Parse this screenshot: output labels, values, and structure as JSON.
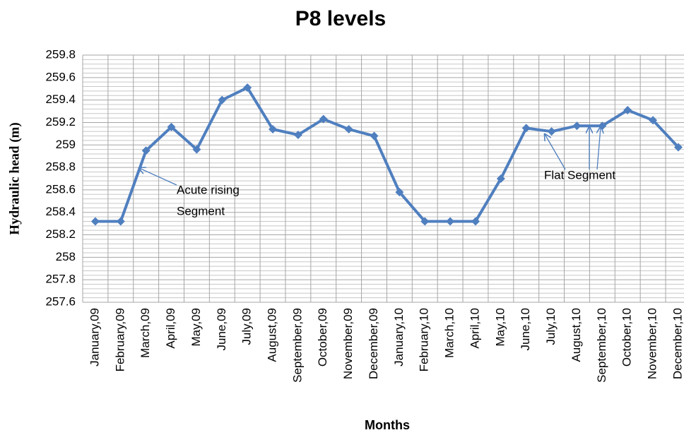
{
  "chart_data": {
    "type": "line",
    "title": "P8 levels",
    "x_label": "Months",
    "y_label": "Hydraulic  head (m)",
    "categories": [
      "January,09",
      "February,09",
      "March,09",
      "April,09",
      "May,09",
      "June,09",
      "July,09",
      "August,09",
      "September,09",
      "October,09",
      "November,09",
      "December,09",
      "January,10",
      "February,10",
      "March,10",
      "April,10",
      "May,10",
      "June,10",
      "July,10",
      "August,10",
      "September,10",
      "October,10",
      "November,10",
      "December,10"
    ],
    "series": [
      {
        "color": "#4f7fbf",
        "values": [
          258.32,
          258.32,
          258.95,
          259.16,
          258.96,
          259.4,
          259.51,
          259.14,
          259.09,
          259.23,
          259.14,
          259.08,
          258.58,
          258.32,
          258.32,
          258.32,
          258.7,
          259.15,
          259.12,
          259.17,
          259.17,
          259.31,
          259.22,
          258.98
        ]
      }
    ],
    "ylim": [
      257.6,
      259.8
    ],
    "yticks": [
      257.6,
      257.8,
      258,
      258.2,
      258.4,
      258.6,
      258.8,
      259,
      259.2,
      259.4,
      259.6,
      259.8
    ],
    "grid": true,
    "annotations": [
      "Acute rising",
      "Segment",
      "Flat Segment"
    ]
  }
}
